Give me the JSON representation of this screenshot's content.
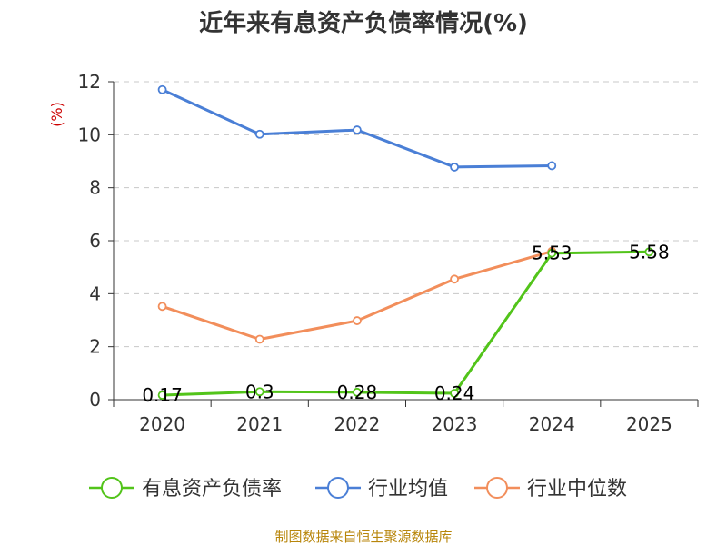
{
  "chart_data": {
    "type": "line",
    "title": "近年来有息资产负债率情况(%)",
    "ylabel": "(%)",
    "categories": [
      "2020",
      "2021",
      "2022",
      "2023",
      "2024",
      "2025"
    ],
    "ylim": [
      0,
      12
    ],
    "yticks": [
      0,
      2,
      4,
      6,
      8,
      10,
      12
    ],
    "grid": true,
    "legend_position": "bottom",
    "series": [
      {
        "name": "有息资产负债率",
        "color": "#52c41a",
        "values": [
          0.17,
          0.3,
          0.28,
          0.24,
          5.53,
          5.58
        ],
        "labels": [
          "0.17",
          "0.3",
          "0.28",
          "0.24",
          "5.53",
          "5.58"
        ]
      },
      {
        "name": "行业均值",
        "color": "#4a7fd6",
        "values": [
          11.7,
          10.02,
          10.18,
          8.78,
          8.83,
          null
        ]
      },
      {
        "name": "行业中位数",
        "color": "#f28e5b",
        "values": [
          3.52,
          2.28,
          2.98,
          4.55,
          5.6,
          null
        ]
      }
    ]
  },
  "source": "制图数据来自恒生聚源数据库"
}
